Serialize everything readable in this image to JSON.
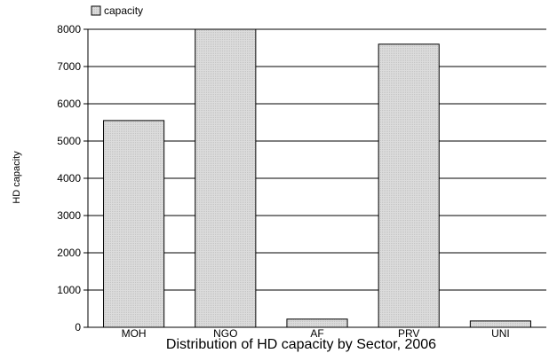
{
  "chart_data": {
    "type": "bar",
    "title": "Distribution of HD capacity by Sector, 2006",
    "xlabel": "",
    "ylabel": "HD capacity",
    "categories": [
      "MOH",
      "NGO",
      "AF",
      "PRV",
      "UNI"
    ],
    "series": [
      {
        "name": "capacity",
        "values": [
          5550,
          8000,
          220,
          7600,
          170
        ],
        "color": "#d9d9d9"
      }
    ],
    "ylim": [
      0,
      8000
    ],
    "yticks": [
      0,
      1000,
      2000,
      3000,
      4000,
      5000,
      6000,
      7000,
      8000
    ],
    "grid": true,
    "legend": "top-left"
  }
}
